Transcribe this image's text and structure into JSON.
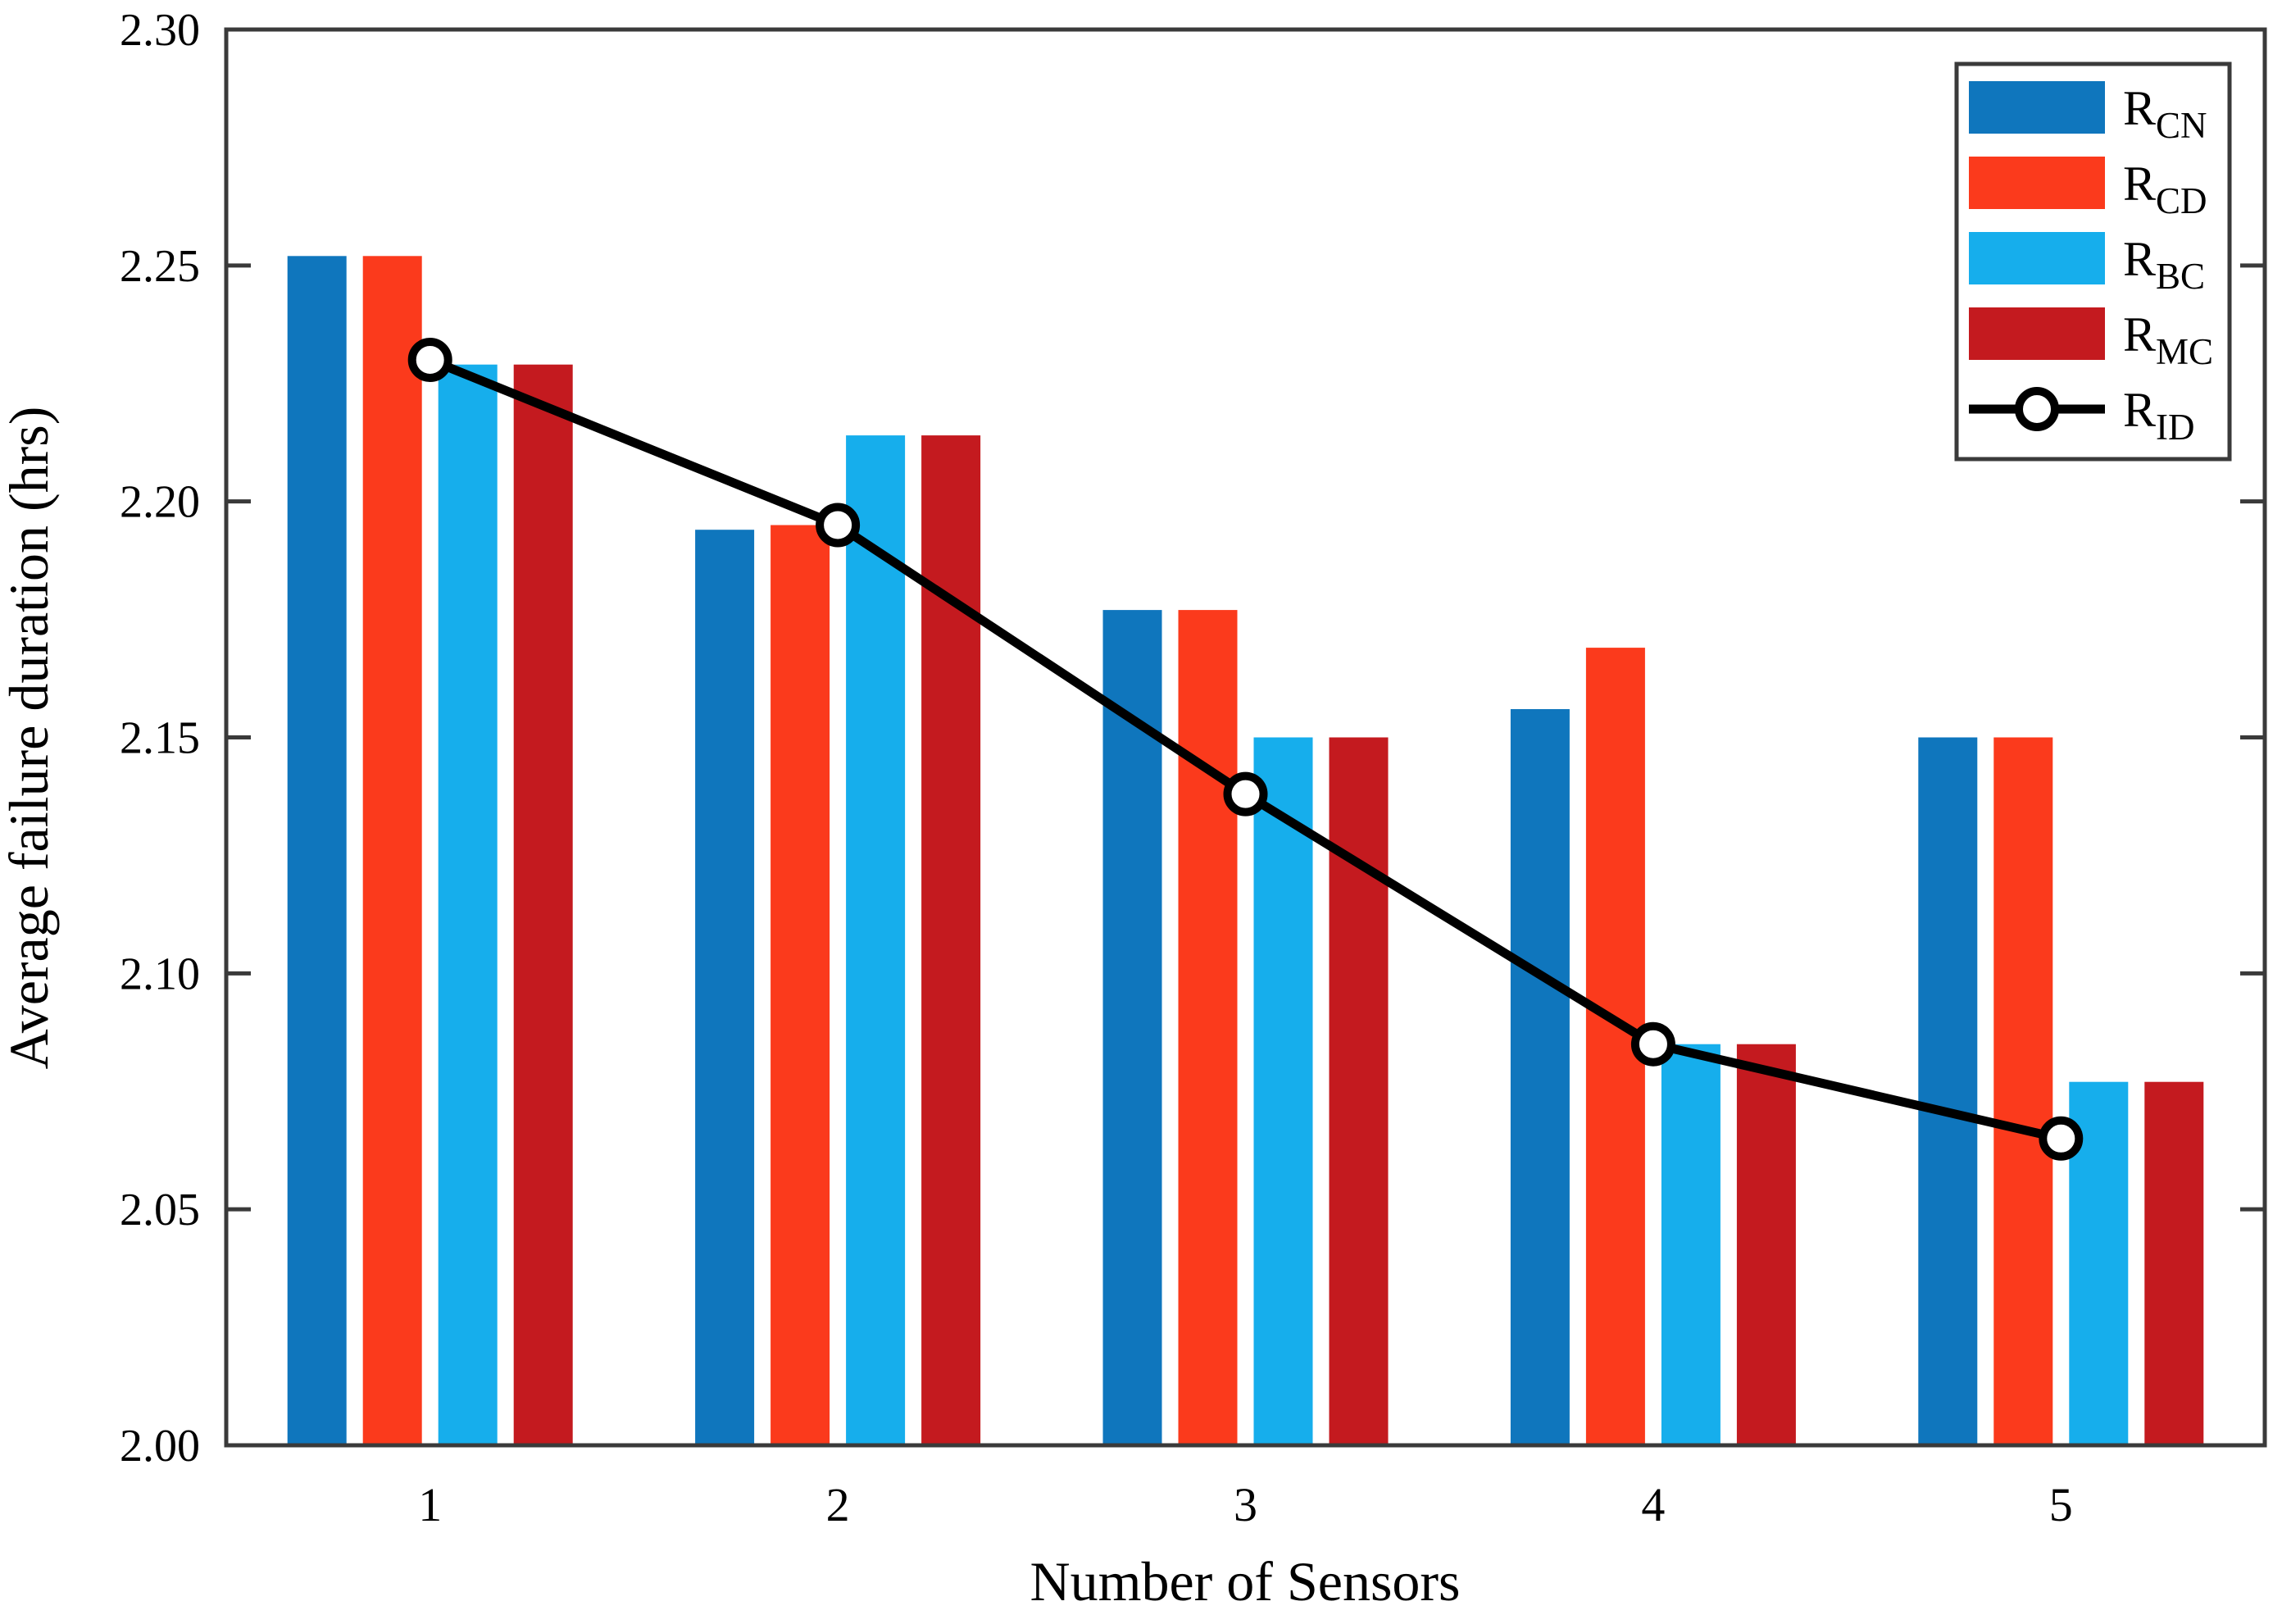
{
  "chart_data": {
    "type": "bar",
    "title": "",
    "xlabel": "Number of Sensors",
    "ylabel": "Average failure duration (hrs)",
    "categories": [
      "1",
      "2",
      "3",
      "4",
      "5"
    ],
    "ylim": [
      2.0,
      2.3
    ],
    "ytick_step": 0.05,
    "ytick_labels": [
      "2.00",
      "2.05",
      "2.10",
      "2.15",
      "2.20",
      "2.25",
      "2.30"
    ],
    "grid": false,
    "legend_position": "top-right",
    "axis_color": "#3a3a3a",
    "series": [
      {
        "name": "R_CN",
        "legend_main": "R",
        "legend_sub": "CN",
        "kind": "bar",
        "color": "#0F76BD",
        "values": [
          2.252,
          2.194,
          2.177,
          2.156,
          2.15
        ]
      },
      {
        "name": "R_CD",
        "legend_main": "R",
        "legend_sub": "CD",
        "kind": "bar",
        "color": "#FB3A1C",
        "values": [
          2.252,
          2.195,
          2.177,
          2.169,
          2.15
        ]
      },
      {
        "name": "R_BC",
        "legend_main": "R",
        "legend_sub": "BC",
        "kind": "bar",
        "color": "#16AEEC",
        "values": [
          2.229,
          2.214,
          2.15,
          2.085,
          2.077
        ]
      },
      {
        "name": "R_MC",
        "legend_main": "R",
        "legend_sub": "MC",
        "kind": "bar",
        "color": "#C41A1F",
        "values": [
          2.229,
          2.214,
          2.15,
          2.085,
          2.077
        ]
      },
      {
        "name": "R_ID",
        "legend_main": "R",
        "legend_sub": "ID",
        "kind": "line",
        "color": "#000000",
        "marker": "open-circle",
        "values": [
          2.23,
          2.195,
          2.138,
          2.085,
          2.065
        ]
      }
    ]
  }
}
